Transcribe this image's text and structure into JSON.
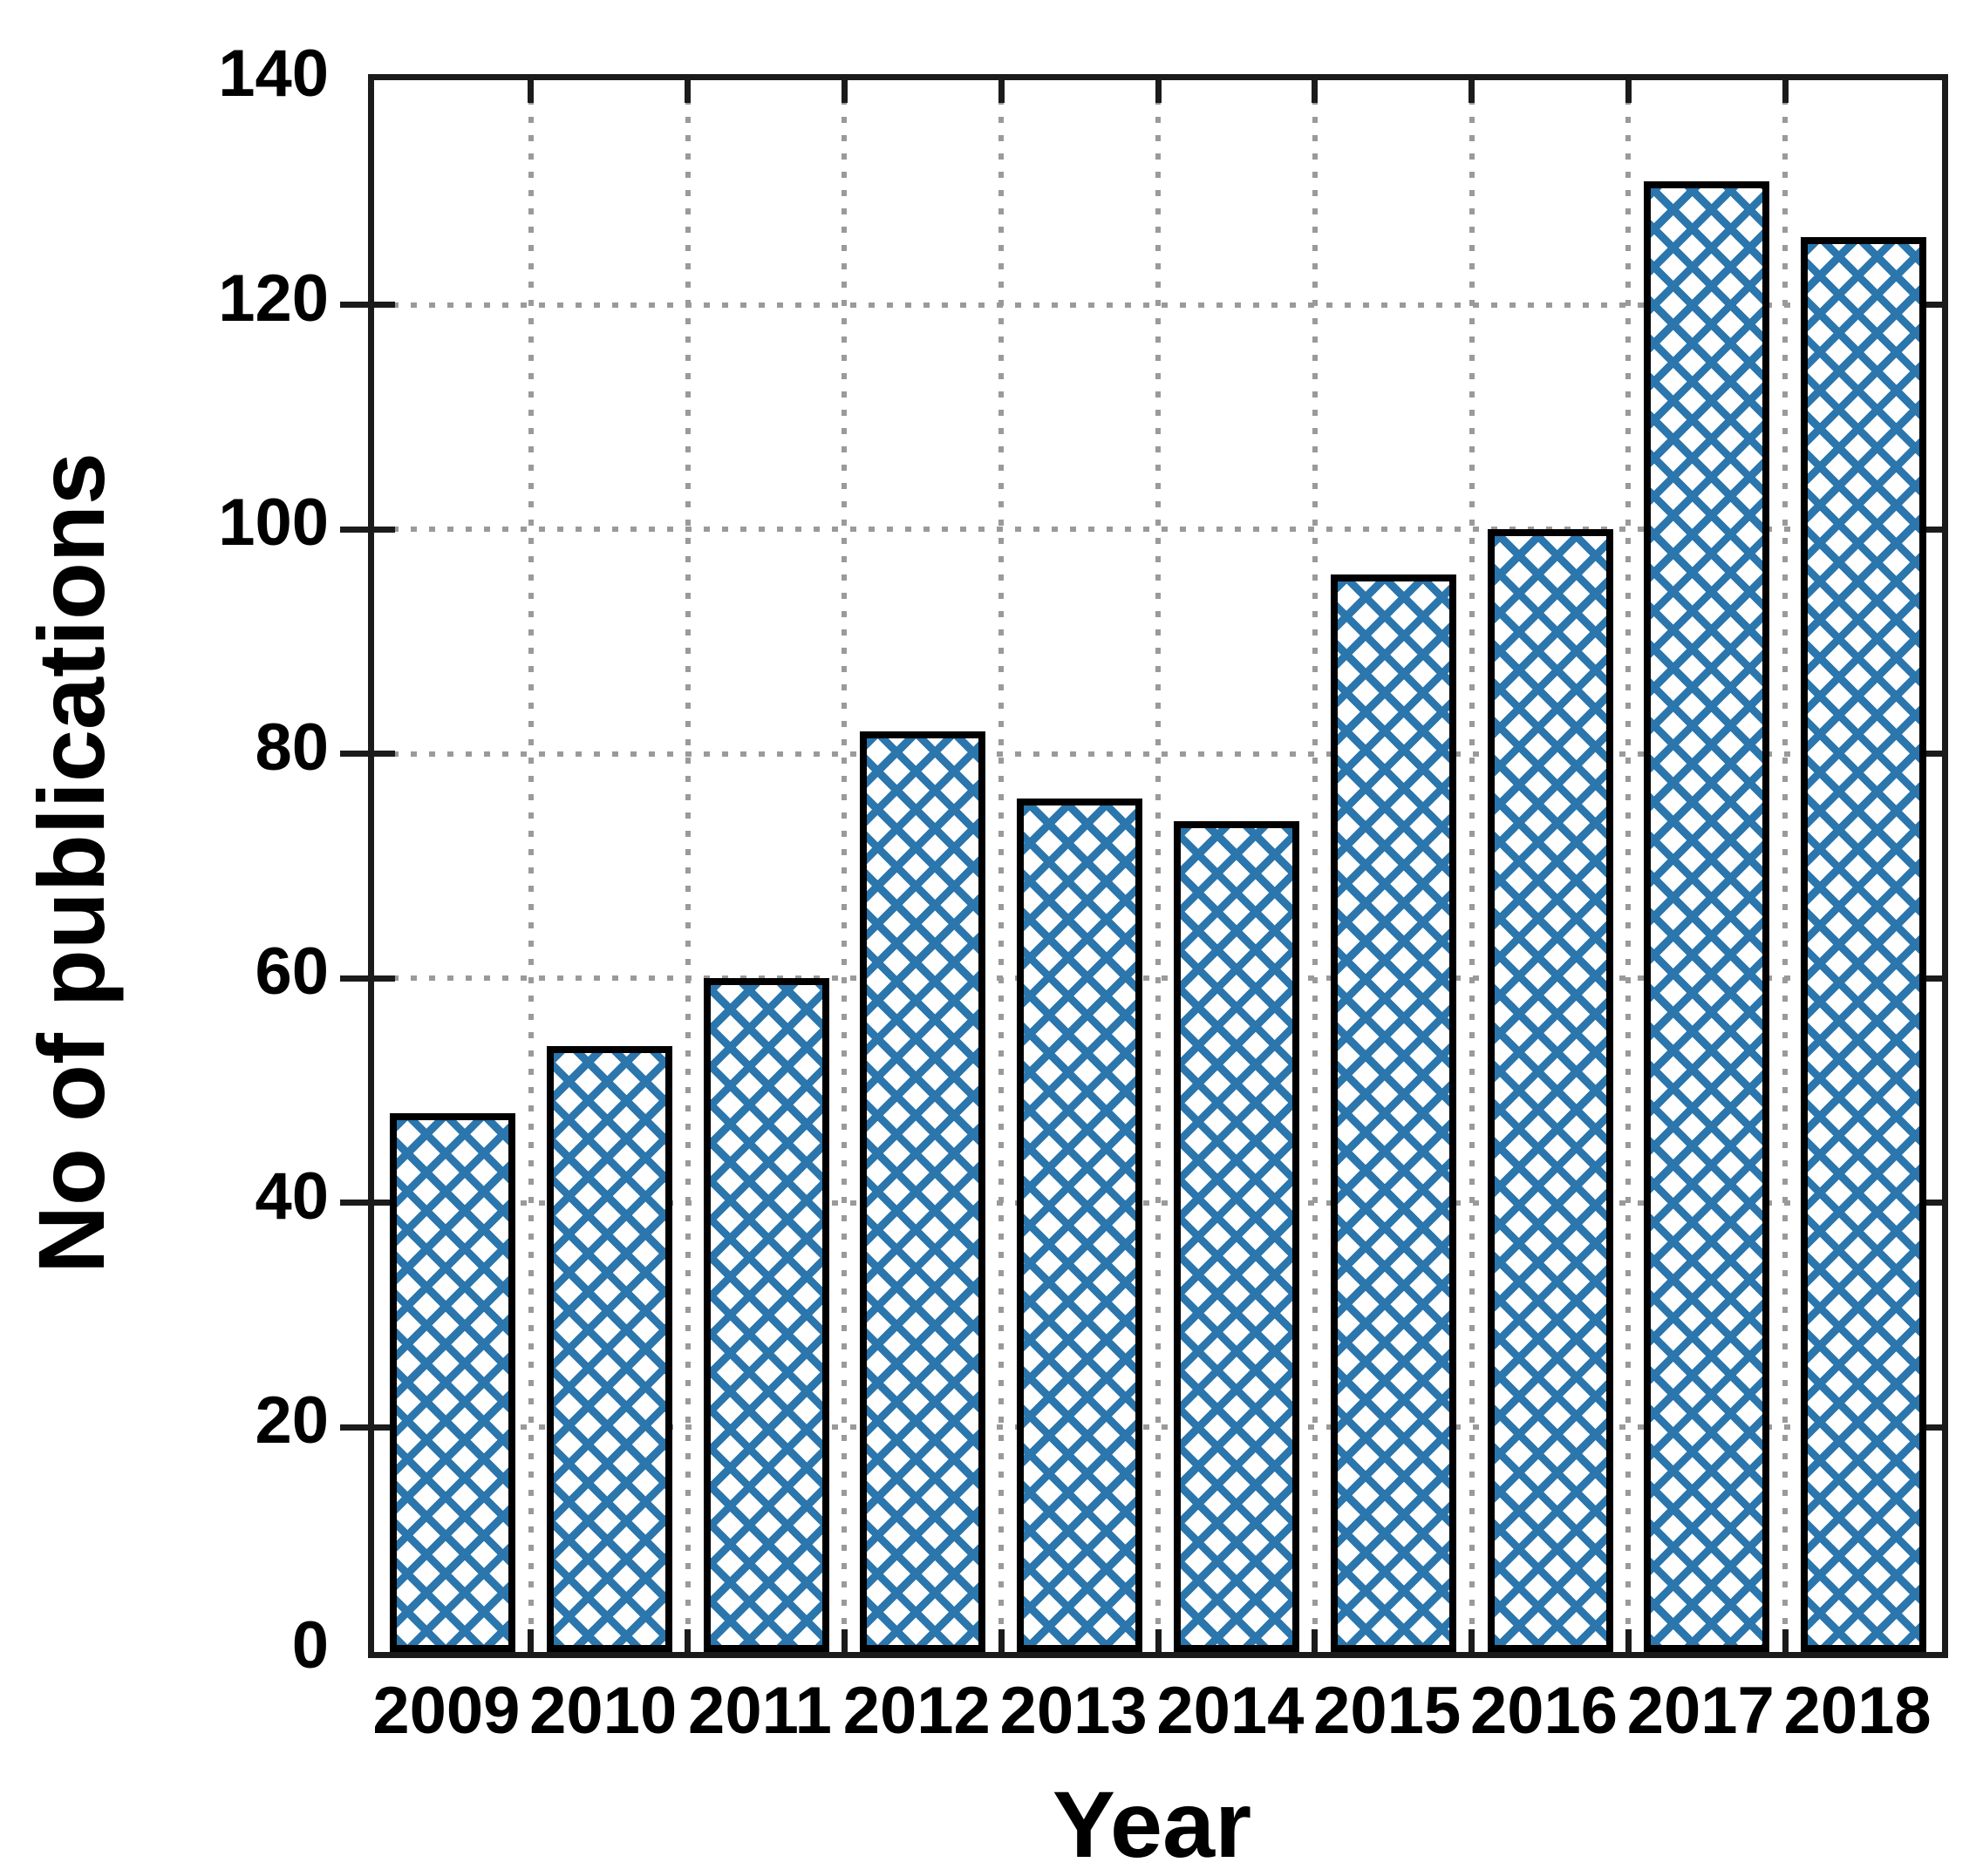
{
  "chart_data": {
    "type": "bar",
    "title": "",
    "xlabel": "Year",
    "ylabel": "No of publications",
    "categories": [
      "2009",
      "2010",
      "2011",
      "2012",
      "2013",
      "2014",
      "2015",
      "2016",
      "2017",
      "2018"
    ],
    "values": [
      48,
      54,
      60,
      82,
      76,
      74,
      96,
      100,
      131,
      126
    ],
    "ylim": [
      0,
      140
    ],
    "yticks": [
      0,
      20,
      40,
      60,
      80,
      100,
      120,
      140
    ],
    "grid": {
      "style": "dotted",
      "horizontal": true,
      "vertical": true,
      "color": "#9a9a9a"
    },
    "legend": "none",
    "bar_style": {
      "fill_pattern": "diagonal-crosshatch",
      "pattern_color": "#2b76ad",
      "pattern_background": "#ffffff",
      "border_color": "#000000"
    },
    "frame_color": "#1b1b1b",
    "text_color": "#000000"
  }
}
